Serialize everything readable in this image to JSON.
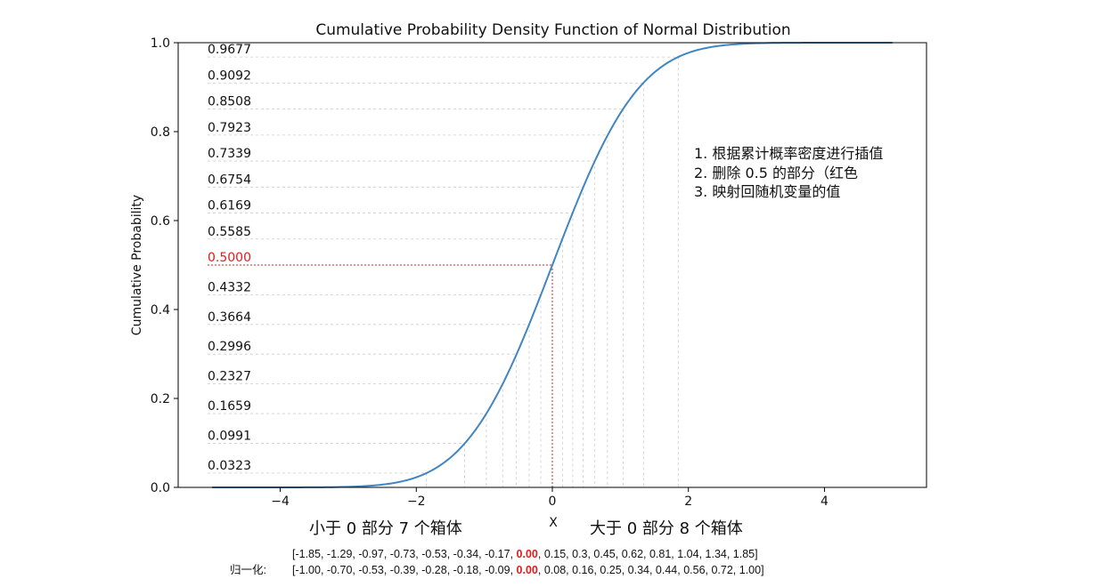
{
  "chart_data": {
    "type": "line",
    "title": "Cumulative Probability Density Function of Normal Distribution",
    "xlabel": "X",
    "ylabel": "Cumulative Probability",
    "xlim": [
      -5.5,
      5.5
    ],
    "ylim": [
      0.0,
      1.0
    ],
    "x_ticks": [
      -4,
      -2,
      0,
      2,
      4
    ],
    "x_tick_labels": [
      "−4",
      "−2",
      "0",
      "2",
      "4"
    ],
    "y_ticks": [
      0.0,
      0.2,
      0.4,
      0.6,
      0.8,
      1.0
    ],
    "y_tick_labels": [
      "0.0",
      "0.2",
      "0.4",
      "0.6",
      "0.8",
      "1.0"
    ],
    "grid": false,
    "series": [
      {
        "x_range": [
          -5,
          5
        ],
        "color": "#3f86c3"
      }
    ],
    "quantile_lines": {
      "x": [
        -1.85,
        -1.29,
        -0.97,
        -0.73,
        -0.53,
        -0.34,
        -0.17,
        0.0,
        0.15,
        0.3,
        0.45,
        0.62,
        0.81,
        1.04,
        1.34,
        1.85
      ],
      "levels": [
        0.0323,
        0.0991,
        0.1659,
        0.2327,
        0.2996,
        0.3664,
        0.4332,
        0.5,
        0.5585,
        0.6169,
        0.6754,
        0.7339,
        0.7923,
        0.8508,
        0.9092,
        0.9677
      ],
      "labels": [
        "0.0323",
        "0.0991",
        "0.1659",
        "0.2327",
        "0.2996",
        "0.3664",
        "0.4332",
        "0.5000",
        "0.5585",
        "0.6169",
        "0.6754",
        "0.7339",
        "0.7923",
        "0.8508",
        "0.9092",
        "0.9677"
      ],
      "highlight_index": 7,
      "highlight_color": "#e41a1c",
      "line_color": "#cccccc"
    },
    "annotations": {
      "steps": [
        "1. 根据累计概率密度进行插值",
        "2. 删除 0.5 的部分（红色",
        "3. 映射回随机变量的值"
      ],
      "left_bins": "小于 0 部分 7 个箱体",
      "right_bins": "大于 0 部分 8 个箱体",
      "raw_values": [
        "-1.85",
        "-1.29",
        "-0.97",
        "-0.73",
        "-0.53",
        "-0.34",
        "-0.17",
        "0.00",
        "0.15",
        "0.3",
        "0.45",
        "0.62",
        "0.81",
        "1.04",
        "1.34",
        "1.85"
      ],
      "normalized_label": "归一化:",
      "normalized_values": [
        "-1.00",
        "-0.70",
        "-0.53",
        "-0.39",
        "-0.28",
        "-0.18",
        "-0.09",
        "0.00",
        "0.08",
        "0.16",
        "0.25",
        "0.34",
        "0.44",
        "0.56",
        "0.72",
        "1.00"
      ],
      "highlight_index": 7
    }
  }
}
